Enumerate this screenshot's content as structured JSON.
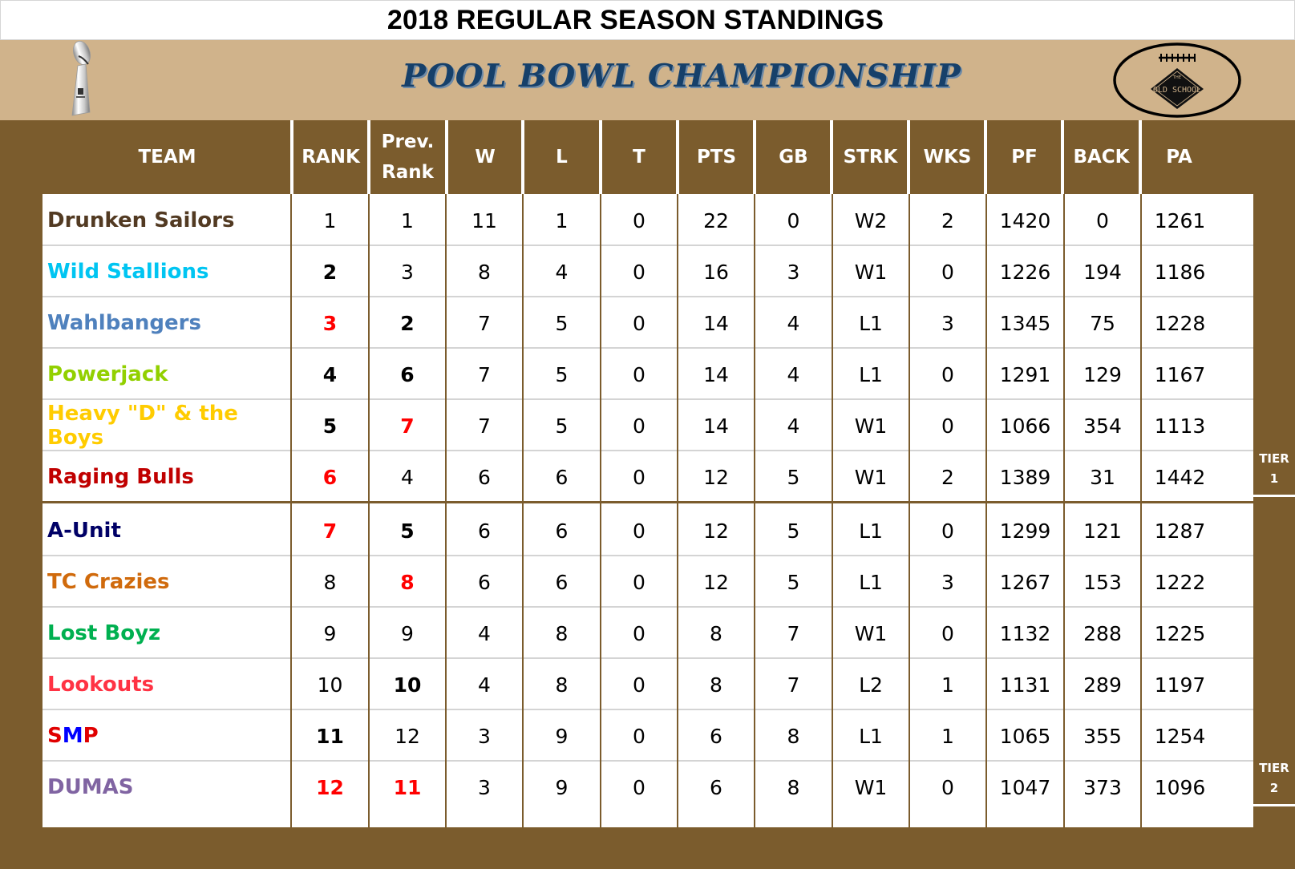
{
  "title": "2018 REGULAR SEASON STANDINGS",
  "banner": {
    "heading": "POOL BOWL CHAMPIONSHIP",
    "left_icon": "trophy-icon",
    "right_logo": "old-school-football-logo",
    "logo_text": "OLD SCHOOL",
    "logo_small_text": "THE"
  },
  "colors": {
    "board": "#7b5c2d",
    "banner": "#d0b38b",
    "heading": "#16406a",
    "highlight_red": "#ff0000"
  },
  "columns": [
    {
      "key": "team",
      "label": "TEAM"
    },
    {
      "key": "rank",
      "label": "RANK"
    },
    {
      "key": "prev_rank",
      "label": "Prev.\nRank",
      "line1": "Prev.",
      "line2": "Rank"
    },
    {
      "key": "w",
      "label": "W"
    },
    {
      "key": "l",
      "label": "L"
    },
    {
      "key": "t",
      "label": "T"
    },
    {
      "key": "pts",
      "label": "PTS"
    },
    {
      "key": "gb",
      "label": "GB"
    },
    {
      "key": "strk",
      "label": "STRK"
    },
    {
      "key": "wks",
      "label": "WKS"
    },
    {
      "key": "pf",
      "label": "PF"
    },
    {
      "key": "back",
      "label": "BACK"
    },
    {
      "key": "pa",
      "label": "PA"
    }
  ],
  "tiers": [
    {
      "label_line1": "TIER",
      "label_line2": "1"
    },
    {
      "label_line1": "TIER",
      "label_line2": "2"
    }
  ],
  "rows": [
    {
      "team": "Drunken Sailors",
      "team_color": "#523a22",
      "rank": "1",
      "rank_style": "normal",
      "prev_rank": "1",
      "prev_style": "normal",
      "w": "11",
      "l": "1",
      "t": "0",
      "pts": "22",
      "gb": "0",
      "strk": "W2",
      "wks": "2",
      "pf": "1420",
      "back": "0",
      "pa": "1261"
    },
    {
      "team": "Wild Stallions",
      "team_color": "#00c5f2",
      "rank": "2",
      "rank_style": "bold",
      "prev_rank": "3",
      "prev_style": "normal",
      "w": "8",
      "l": "4",
      "t": "0",
      "pts": "16",
      "gb": "3",
      "strk": "W1",
      "wks": "0",
      "pf": "1226",
      "back": "194",
      "pa": "1186"
    },
    {
      "team": "Wahlbangers",
      "team_color": "#4f81bd",
      "rank": "3",
      "rank_style": "red",
      "prev_rank": "2",
      "prev_style": "bold",
      "w": "7",
      "l": "5",
      "t": "0",
      "pts": "14",
      "gb": "4",
      "strk": "L1",
      "wks": "3",
      "pf": "1345",
      "back": "75",
      "pa": "1228"
    },
    {
      "team": "Powerjack",
      "team_color": "#92d000",
      "rank": "4",
      "rank_style": "bold",
      "prev_rank": "6",
      "prev_style": "bold",
      "w": "7",
      "l": "5",
      "t": "0",
      "pts": "14",
      "gb": "4",
      "strk": "L1",
      "wks": "0",
      "pf": "1291",
      "back": "129",
      "pa": "1167"
    },
    {
      "team": "Heavy \"D\" & the Boys",
      "team_color": "#ffcc00",
      "rank": "5",
      "rank_style": "bold",
      "prev_rank": "7",
      "prev_style": "red",
      "w": "7",
      "l": "5",
      "t": "0",
      "pts": "14",
      "gb": "4",
      "strk": "W1",
      "wks": "0",
      "pf": "1066",
      "back": "354",
      "pa": "1113"
    },
    {
      "team": "Raging Bulls",
      "team_color": "#c00000",
      "rank": "6",
      "rank_style": "red",
      "prev_rank": "4",
      "prev_style": "normal",
      "w": "6",
      "l": "6",
      "t": "0",
      "pts": "12",
      "gb": "5",
      "strk": "W1",
      "wks": "2",
      "pf": "1389",
      "back": "31",
      "pa": "1442"
    },
    {
      "team": "A-Unit",
      "team_color": "#000066",
      "rank": "7",
      "rank_style": "red",
      "prev_rank": "5",
      "prev_style": "bold",
      "w": "6",
      "l": "6",
      "t": "0",
      "pts": "12",
      "gb": "5",
      "strk": "L1",
      "wks": "0",
      "pf": "1299",
      "back": "121",
      "pa": "1287"
    },
    {
      "team": "TC Crazies",
      "team_color": "#d06a0c",
      "rank": "8",
      "rank_style": "normal",
      "prev_rank": "8",
      "prev_style": "red",
      "w": "6",
      "l": "6",
      "t": "0",
      "pts": "12",
      "gb": "5",
      "strk": "L1",
      "wks": "3",
      "pf": "1267",
      "back": "153",
      "pa": "1222"
    },
    {
      "team": "Lost Boyz",
      "team_color": "#00b050",
      "rank": "9",
      "rank_style": "normal",
      "prev_rank": "9",
      "prev_style": "normal",
      "w": "4",
      "l": "8",
      "t": "0",
      "pts": "8",
      "gb": "7",
      "strk": "W1",
      "wks": "0",
      "pf": "1132",
      "back": "288",
      "pa": "1225"
    },
    {
      "team": "Lookouts",
      "team_color": "#ff3344",
      "rank": "10",
      "rank_style": "normal",
      "prev_rank": "10",
      "prev_style": "bold",
      "w": "4",
      "l": "8",
      "t": "0",
      "pts": "8",
      "gb": "7",
      "strk": "L2",
      "wks": "1",
      "pf": "1131",
      "back": "289",
      "pa": "1197"
    },
    {
      "team": "SMP",
      "team_color": "#e00000",
      "team_parts": [
        {
          "text": "S",
          "color": "#e00000"
        },
        {
          "text": "M",
          "color": "#0000ff"
        },
        {
          "text": "P",
          "color": "#e00000"
        }
      ],
      "rank": "11",
      "rank_style": "bold",
      "prev_rank": "12",
      "prev_style": "normal",
      "w": "3",
      "l": "9",
      "t": "0",
      "pts": "6",
      "gb": "8",
      "strk": "L1",
      "wks": "1",
      "pf": "1065",
      "back": "355",
      "pa": "1254"
    },
    {
      "team": "DUMAS",
      "team_color": "#8064a2",
      "rank": "12",
      "rank_style": "red",
      "prev_rank": "11",
      "prev_style": "red",
      "w": "3",
      "l": "9",
      "t": "0",
      "pts": "6",
      "gb": "8",
      "strk": "W1",
      "wks": "0",
      "pf": "1047",
      "back": "373",
      "pa": "1096"
    }
  ]
}
